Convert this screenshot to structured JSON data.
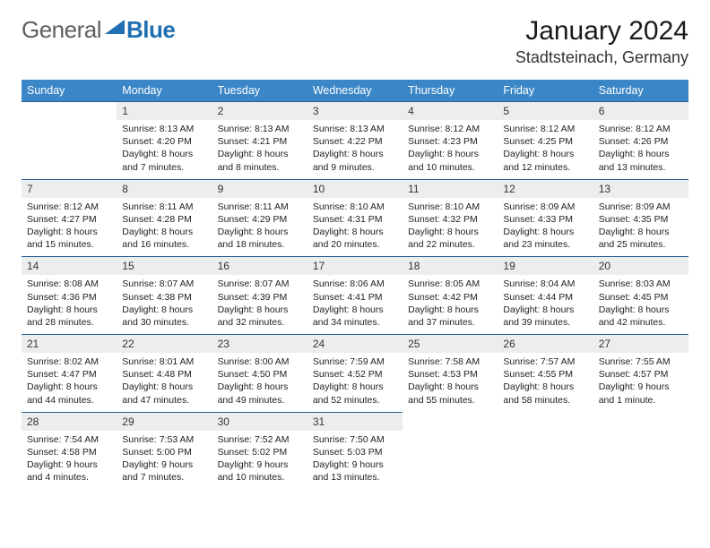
{
  "brand": {
    "part1": "General",
    "part2": "Blue",
    "accent": "#1f6fb2"
  },
  "title": "January 2024",
  "location": "Stadtsteinach, Germany",
  "header_bg": "#3b86c6",
  "daybar_bg": "#eceeee",
  "daybar_border": "#2a5f8e",
  "weekdays": [
    "Sunday",
    "Monday",
    "Tuesday",
    "Wednesday",
    "Thursday",
    "Friday",
    "Saturday"
  ],
  "first_weekday_index": 1,
  "days": [
    {
      "n": 1,
      "sunrise": "8:13 AM",
      "sunset": "4:20 PM",
      "daylight": "8 hours and 7 minutes."
    },
    {
      "n": 2,
      "sunrise": "8:13 AM",
      "sunset": "4:21 PM",
      "daylight": "8 hours and 8 minutes."
    },
    {
      "n": 3,
      "sunrise": "8:13 AM",
      "sunset": "4:22 PM",
      "daylight": "8 hours and 9 minutes."
    },
    {
      "n": 4,
      "sunrise": "8:12 AM",
      "sunset": "4:23 PM",
      "daylight": "8 hours and 10 minutes."
    },
    {
      "n": 5,
      "sunrise": "8:12 AM",
      "sunset": "4:25 PM",
      "daylight": "8 hours and 12 minutes."
    },
    {
      "n": 6,
      "sunrise": "8:12 AM",
      "sunset": "4:26 PM",
      "daylight": "8 hours and 13 minutes."
    },
    {
      "n": 7,
      "sunrise": "8:12 AM",
      "sunset": "4:27 PM",
      "daylight": "8 hours and 15 minutes."
    },
    {
      "n": 8,
      "sunrise": "8:11 AM",
      "sunset": "4:28 PM",
      "daylight": "8 hours and 16 minutes."
    },
    {
      "n": 9,
      "sunrise": "8:11 AM",
      "sunset": "4:29 PM",
      "daylight": "8 hours and 18 minutes."
    },
    {
      "n": 10,
      "sunrise": "8:10 AM",
      "sunset": "4:31 PM",
      "daylight": "8 hours and 20 minutes."
    },
    {
      "n": 11,
      "sunrise": "8:10 AM",
      "sunset": "4:32 PM",
      "daylight": "8 hours and 22 minutes."
    },
    {
      "n": 12,
      "sunrise": "8:09 AM",
      "sunset": "4:33 PM",
      "daylight": "8 hours and 23 minutes."
    },
    {
      "n": 13,
      "sunrise": "8:09 AM",
      "sunset": "4:35 PM",
      "daylight": "8 hours and 25 minutes."
    },
    {
      "n": 14,
      "sunrise": "8:08 AM",
      "sunset": "4:36 PM",
      "daylight": "8 hours and 28 minutes."
    },
    {
      "n": 15,
      "sunrise": "8:07 AM",
      "sunset": "4:38 PM",
      "daylight": "8 hours and 30 minutes."
    },
    {
      "n": 16,
      "sunrise": "8:07 AM",
      "sunset": "4:39 PM",
      "daylight": "8 hours and 32 minutes."
    },
    {
      "n": 17,
      "sunrise": "8:06 AM",
      "sunset": "4:41 PM",
      "daylight": "8 hours and 34 minutes."
    },
    {
      "n": 18,
      "sunrise": "8:05 AM",
      "sunset": "4:42 PM",
      "daylight": "8 hours and 37 minutes."
    },
    {
      "n": 19,
      "sunrise": "8:04 AM",
      "sunset": "4:44 PM",
      "daylight": "8 hours and 39 minutes."
    },
    {
      "n": 20,
      "sunrise": "8:03 AM",
      "sunset": "4:45 PM",
      "daylight": "8 hours and 42 minutes."
    },
    {
      "n": 21,
      "sunrise": "8:02 AM",
      "sunset": "4:47 PM",
      "daylight": "8 hours and 44 minutes."
    },
    {
      "n": 22,
      "sunrise": "8:01 AM",
      "sunset": "4:48 PM",
      "daylight": "8 hours and 47 minutes."
    },
    {
      "n": 23,
      "sunrise": "8:00 AM",
      "sunset": "4:50 PM",
      "daylight": "8 hours and 49 minutes."
    },
    {
      "n": 24,
      "sunrise": "7:59 AM",
      "sunset": "4:52 PM",
      "daylight": "8 hours and 52 minutes."
    },
    {
      "n": 25,
      "sunrise": "7:58 AM",
      "sunset": "4:53 PM",
      "daylight": "8 hours and 55 minutes."
    },
    {
      "n": 26,
      "sunrise": "7:57 AM",
      "sunset": "4:55 PM",
      "daylight": "8 hours and 58 minutes."
    },
    {
      "n": 27,
      "sunrise": "7:55 AM",
      "sunset": "4:57 PM",
      "daylight": "9 hours and 1 minute."
    },
    {
      "n": 28,
      "sunrise": "7:54 AM",
      "sunset": "4:58 PM",
      "daylight": "9 hours and 4 minutes."
    },
    {
      "n": 29,
      "sunrise": "7:53 AM",
      "sunset": "5:00 PM",
      "daylight": "9 hours and 7 minutes."
    },
    {
      "n": 30,
      "sunrise": "7:52 AM",
      "sunset": "5:02 PM",
      "daylight": "9 hours and 10 minutes."
    },
    {
      "n": 31,
      "sunrise": "7:50 AM",
      "sunset": "5:03 PM",
      "daylight": "9 hours and 13 minutes."
    }
  ],
  "labels": {
    "sunrise": "Sunrise:",
    "sunset": "Sunset:",
    "daylight": "Daylight:"
  }
}
